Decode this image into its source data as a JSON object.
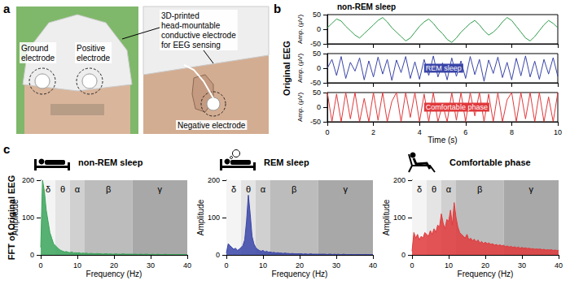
{
  "figure": {
    "panels": [
      "a",
      "b",
      "c"
    ],
    "photo_labels": {
      "ground": "Ground electrode",
      "positive": "Positive electrode",
      "cap": "3D-printed head-mountable conductive electrode for EEG sensing",
      "negative": "Negative electrode"
    },
    "row_labels": {
      "b": "Original EEG",
      "c": "FFT of Original EEG"
    }
  },
  "chart_data": [
    {
      "type": "line",
      "title": "non-REM sleep",
      "color": "#2e9a4a",
      "x": [
        0,
        0.2,
        0.4,
        0.6,
        0.8,
        1,
        1.2,
        1.4,
        1.6,
        1.8,
        2,
        2.2,
        2.4,
        2.6,
        2.8,
        3,
        3.2,
        3.4,
        3.6,
        3.8,
        4,
        4.2,
        4.4,
        4.6,
        4.8,
        5,
        5.2,
        5.4,
        5.6,
        5.8,
        6,
        6.2,
        6.4,
        6.6,
        6.8,
        7,
        7.2,
        7.4,
        7.6,
        7.8,
        8,
        8.2,
        8.4,
        8.6,
        8.8,
        9,
        9.2,
        9.4,
        9.6,
        9.8,
        10
      ],
      "values": [
        5,
        20,
        35,
        28,
        10,
        -5,
        -20,
        -30,
        -15,
        0,
        15,
        30,
        40,
        25,
        5,
        -10,
        -25,
        -40,
        -30,
        -10,
        10,
        25,
        35,
        20,
        0,
        -15,
        -35,
        -45,
        -30,
        -10,
        5,
        20,
        30,
        15,
        -5,
        -20,
        -10,
        5,
        25,
        40,
        30,
        10,
        -10,
        -30,
        -40,
        -25,
        -5,
        15,
        30,
        20,
        5
      ],
      "xlim": [
        0,
        10
      ],
      "xticks": [
        0,
        2,
        4,
        6,
        8,
        10
      ],
      "ylim": [
        -50,
        50
      ],
      "yticks": [
        -50,
        0,
        50
      ],
      "ylabel": "Amp. (μV)",
      "tick_labels": "y"
    },
    {
      "type": "line",
      "annotation": "REM sleep",
      "color": "#3a45a8",
      "x": [
        0,
        0.2,
        0.4,
        0.6,
        0.8,
        1,
        1.2,
        1.4,
        1.6,
        1.8,
        2,
        2.2,
        2.4,
        2.6,
        2.8,
        3,
        3.2,
        3.4,
        3.6,
        3.8,
        4,
        4.2,
        4.4,
        4.6,
        4.8,
        5,
        5.2,
        5.4,
        5.6,
        5.8,
        6,
        6.2,
        6.4,
        6.6,
        6.8,
        7,
        7.2,
        7.4,
        7.6,
        7.8,
        8,
        8.2,
        8.4,
        8.6,
        8.8,
        9,
        9.2,
        9.4,
        9.6,
        9.8,
        10
      ],
      "values": [
        0,
        30,
        -25,
        40,
        -35,
        20,
        -10,
        35,
        -40,
        25,
        -30,
        38,
        -20,
        30,
        -42,
        28,
        -15,
        40,
        -35,
        22,
        -38,
        30,
        -25,
        42,
        -30,
        18,
        -40,
        35,
        -28,
        25,
        -35,
        40,
        -22,
        30,
        -45,
        28,
        -18,
        38,
        -32,
        20,
        -40,
        34,
        -26,
        42,
        -30,
        24,
        -38,
        30,
        -20,
        36,
        -28
      ],
      "xlim": [
        0,
        10
      ],
      "xticks": [
        0,
        2,
        4,
        6,
        8,
        10
      ],
      "ylim": [
        -50,
        50
      ],
      "yticks": [
        -50,
        0,
        50
      ],
      "ylabel": "Amp. (μV)",
      "tick_labels": "y"
    },
    {
      "type": "line",
      "annotation": "Comfortable phase",
      "color": "#e0393c",
      "x": [
        0,
        0.2,
        0.4,
        0.6,
        0.8,
        1,
        1.2,
        1.4,
        1.6,
        1.8,
        2,
        2.2,
        2.4,
        2.6,
        2.8,
        3,
        3.2,
        3.4,
        3.6,
        3.8,
        4,
        4.2,
        4.4,
        4.6,
        4.8,
        5,
        5.2,
        5.4,
        5.6,
        5.8,
        6,
        6.2,
        6.4,
        6.6,
        6.8,
        7,
        7.2,
        7.4,
        7.6,
        7.8,
        8,
        8.2,
        8.4,
        8.6,
        8.8,
        9,
        9.2,
        9.4,
        9.6,
        9.8,
        10
      ],
      "values": [
        50,
        -50,
        45,
        -50,
        50,
        -40,
        50,
        -50,
        30,
        -50,
        50,
        -45,
        50,
        -50,
        20,
        50,
        -50,
        50,
        -35,
        50,
        -50,
        45,
        -50,
        50,
        -50,
        10,
        -50,
        50,
        -45,
        50,
        -50,
        50,
        -30,
        50,
        -50,
        45,
        -50,
        50,
        -50,
        25,
        50,
        -50,
        50,
        -40,
        50,
        -50,
        50,
        -50,
        35,
        -50,
        50
      ],
      "xlim": [
        0,
        10
      ],
      "xticks": [
        0,
        2,
        4,
        6,
        8,
        10
      ],
      "ylim": [
        -50,
        50
      ],
      "yticks": [
        -50,
        0,
        50
      ],
      "xlabel": "Time (s)",
      "ylabel": "Amp. (μV)"
    },
    {
      "type": "area",
      "title": "non-REM sleep",
      "color": "#3aa55a",
      "x": [
        0,
        0.5,
        1,
        1.5,
        2,
        2.5,
        3,
        3.5,
        4,
        4.5,
        5,
        5.5,
        6,
        6.5,
        7,
        7.5,
        8,
        8.5,
        9,
        9.5,
        10,
        10.5,
        11,
        11.5,
        12,
        12.5,
        13,
        13.5,
        14,
        14.5,
        15,
        15.5,
        16,
        16.5,
        17,
        17.5,
        18,
        18.5,
        19,
        19.5,
        20,
        20.5,
        21,
        21.5,
        22,
        22.5,
        23,
        23.5,
        24,
        24.5,
        25,
        25.5,
        26,
        26.5,
        27,
        27.5,
        28,
        28.5,
        29,
        29.5,
        30,
        30.5,
        31,
        31.5,
        32,
        32.5,
        33,
        33.5,
        34,
        34.5,
        35,
        35.5,
        36,
        36.5,
        37,
        37.5,
        38,
        38.5,
        39,
        39.5,
        40
      ],
      "values": [
        20,
        200,
        170,
        120,
        90,
        60,
        45,
        30,
        25,
        20,
        15,
        12,
        10,
        8,
        9,
        7,
        6,
        8,
        5,
        6,
        5,
        6,
        4,
        5,
        4,
        5,
        3,
        4,
        4,
        3,
        3,
        4,
        3,
        3,
        2,
        3,
        3,
        2,
        3,
        2,
        2,
        3,
        2,
        2,
        2,
        3,
        2,
        2,
        2,
        2,
        2,
        2,
        2,
        1,
        2,
        2,
        1,
        2,
        2,
        1,
        1,
        2,
        1,
        1,
        2,
        1,
        1,
        1,
        2,
        1,
        1,
        1,
        1,
        1,
        1,
        1,
        1,
        1,
        1,
        1,
        1
      ],
      "xlim": [
        0,
        40
      ],
      "xticks": [
        0,
        10,
        20,
        30,
        40
      ],
      "ylim": [
        0,
        200
      ],
      "yticks": [
        0,
        100,
        200
      ],
      "xlabel": "Frequency (Hz)",
      "ylabel": "Amplitude",
      "bands": [
        {
          "label": "δ",
          "start": 0,
          "end": 4
        },
        {
          "label": "θ",
          "start": 4,
          "end": 8
        },
        {
          "label": "α",
          "start": 8,
          "end": 12
        },
        {
          "label": "β",
          "start": 12,
          "end": 25
        },
        {
          "label": "γ",
          "start": 25,
          "end": 40
        }
      ]
    },
    {
      "type": "area",
      "title": "REM sleep",
      "color": "#3a45a8",
      "x": [
        0,
        0.5,
        1,
        1.5,
        2,
        2.5,
        3,
        3.5,
        4,
        4.5,
        5,
        5.5,
        6,
        6.5,
        7,
        7.5,
        8,
        8.5,
        9,
        9.5,
        10,
        10.5,
        11,
        11.5,
        12,
        12.5,
        13,
        13.5,
        14,
        14.5,
        15,
        15.5,
        16,
        16.5,
        17,
        17.5,
        18,
        18.5,
        19,
        19.5,
        20,
        20.5,
        21,
        21.5,
        22,
        22.5,
        23,
        23.5,
        24,
        24.5,
        25,
        25.5,
        26,
        26.5,
        27,
        27.5,
        28,
        28.5,
        29,
        29.5,
        30,
        30.5,
        31,
        31.5,
        32,
        32.5,
        33,
        33.5,
        34,
        34.5,
        35,
        35.5,
        36,
        36.5,
        37,
        37.5,
        38,
        38.5,
        39,
        39.5,
        40
      ],
      "values": [
        5,
        30,
        25,
        20,
        15,
        18,
        12,
        15,
        20,
        25,
        40,
        90,
        160,
        110,
        50,
        30,
        20,
        15,
        12,
        10,
        12,
        8,
        10,
        7,
        8,
        6,
        7,
        5,
        6,
        5,
        5,
        4,
        5,
        4,
        4,
        3,
        4,
        3,
        3,
        3,
        3,
        3,
        2,
        3,
        2,
        2,
        3,
        2,
        2,
        2,
        2,
        2,
        2,
        2,
        2,
        1,
        2,
        2,
        1,
        2,
        1,
        2,
        1,
        1,
        2,
        1,
        1,
        1,
        1,
        1,
        1,
        1,
        1,
        1,
        1,
        1,
        1,
        1,
        1,
        1,
        1
      ],
      "xlim": [
        0,
        40
      ],
      "xticks": [
        0,
        10,
        20,
        30,
        40
      ],
      "ylim": [
        0,
        200
      ],
      "yticks": [
        0,
        100,
        200
      ],
      "xlabel": "Frequency (Hz)",
      "ylabel": "Amplitude",
      "bands": [
        {
          "label": "δ",
          "start": 0,
          "end": 4
        },
        {
          "label": "θ",
          "start": 4,
          "end": 8
        },
        {
          "label": "α",
          "start": 8,
          "end": 12
        },
        {
          "label": "β",
          "start": 12,
          "end": 25
        },
        {
          "label": "γ",
          "start": 25,
          "end": 40
        }
      ]
    },
    {
      "type": "area",
      "title": "Comfortable phase",
      "color": "#e0393c",
      "x": [
        0,
        0.5,
        1,
        1.5,
        2,
        2.5,
        3,
        3.5,
        4,
        4.5,
        5,
        5.5,
        6,
        6.5,
        7,
        7.5,
        8,
        8.5,
        9,
        9.5,
        10,
        10.5,
        11,
        11.5,
        12,
        12.5,
        13,
        13.5,
        14,
        14.5,
        15,
        15.5,
        16,
        16.5,
        17,
        17.5,
        18,
        18.5,
        19,
        19.5,
        20,
        20.5,
        21,
        21.5,
        22,
        22.5,
        23,
        23.5,
        24,
        24.5,
        25,
        25.5,
        26,
        26.5,
        27,
        27.5,
        28,
        28.5,
        29,
        29.5,
        30,
        30.5,
        31,
        31.5,
        32,
        32.5,
        33,
        33.5,
        34,
        34.5,
        35,
        35.5,
        36,
        36.5,
        37,
        37.5,
        38,
        38.5,
        39,
        39.5,
        40
      ],
      "values": [
        10,
        60,
        45,
        55,
        40,
        50,
        45,
        60,
        55,
        50,
        65,
        55,
        70,
        60,
        80,
        75,
        110,
        85,
        70,
        95,
        90,
        120,
        80,
        140,
        100,
        75,
        60,
        55,
        50,
        45,
        55,
        40,
        45,
        38,
        42,
        35,
        40,
        32,
        36,
        30,
        34,
        30,
        32,
        28,
        30,
        26,
        28,
        25,
        27,
        24,
        26,
        22,
        24,
        21,
        23,
        20,
        22,
        19,
        21,
        18,
        20,
        18,
        19,
        17,
        18,
        16,
        17,
        15,
        16,
        15,
        16,
        14,
        15,
        13,
        14,
        13,
        14,
        12,
        13,
        12,
        12
      ],
      "xlim": [
        0,
        40
      ],
      "xticks": [
        0,
        10,
        20,
        30,
        40
      ],
      "ylim": [
        0,
        200
      ],
      "yticks": [
        0,
        100,
        200
      ],
      "xlabel": "Frequency (Hz)",
      "ylabel": "Amplitude",
      "bands": [
        {
          "label": "δ",
          "start": 0,
          "end": 4
        },
        {
          "label": "θ",
          "start": 4,
          "end": 8
        },
        {
          "label": "α",
          "start": 8,
          "end": 12
        },
        {
          "label": "β",
          "start": 12,
          "end": 25
        },
        {
          "label": "γ",
          "start": 25,
          "end": 40
        }
      ]
    }
  ]
}
